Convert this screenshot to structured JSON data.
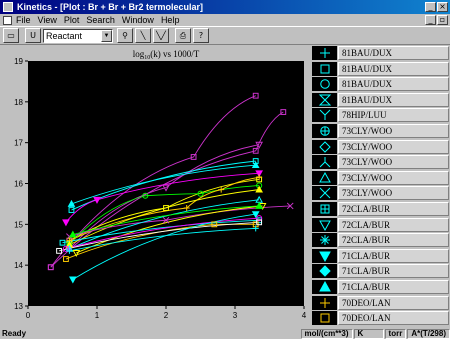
{
  "window": {
    "title": "Kinetics - [Plot : Br + Br + Br2 termolecular]",
    "min": "_",
    "close": "×"
  },
  "menu": [
    "File",
    "View",
    "Plot",
    "Search",
    "Window",
    "Help"
  ],
  "mdi": {
    "min": "_",
    "restore": "▫"
  },
  "toolbar": {
    "save_icon": "▭",
    "bold_u": "U",
    "reactant_value": "Reactant",
    "binoculars": "⚲",
    "line1": "╲",
    "line2": "╲╱",
    "print": "⎙",
    "help": "?"
  },
  "status": {
    "text": "Ready",
    "units": "mol/(cm**3)",
    "temp": "K",
    "pressure": "torr",
    "formula": "A*(T/298)"
  },
  "legend": [
    {
      "symbol": "plus-thin",
      "label": "81BAU/DUX",
      "color": "#00ffff"
    },
    {
      "symbol": "square-open",
      "label": "81BAU/DUX",
      "color": "#00ffff"
    },
    {
      "symbol": "circle-open",
      "label": "81BAU/DUX",
      "color": "#00ffff"
    },
    {
      "symbol": "bowtie",
      "label": "81BAU/DUX",
      "color": "#00ffff"
    },
    {
      "symbol": "y",
      "label": "78HIP/LUU",
      "color": "#00ffff"
    },
    {
      "symbol": "circle-plus",
      "label": "73CLY/WOO",
      "color": "#00ffff"
    },
    {
      "symbol": "diamond-open",
      "label": "73CLY/WOO",
      "color": "#00ffff"
    },
    {
      "symbol": "inv-y",
      "label": "73CLY/WOO",
      "color": "#00ffff"
    },
    {
      "symbol": "triangle-open",
      "label": "73CLY/WOO",
      "color": "#00ffff"
    },
    {
      "symbol": "x",
      "label": "73CLY/WOO",
      "color": "#00ffff"
    },
    {
      "symbol": "square-plus",
      "label": "72CLA/BUR",
      "color": "#00ffff"
    },
    {
      "symbol": "inv-triangle-open",
      "label": "72CLA/BUR",
      "color": "#00ffff"
    },
    {
      "symbol": "asterisk",
      "label": "72CLA/BUR",
      "color": "#00ffff"
    },
    {
      "symbol": "inv-triangle-filled",
      "label": "71CLA/BUR",
      "color": "#00ffff"
    },
    {
      "symbol": "diamond-filled",
      "label": "71CLA/BUR",
      "color": "#00ffff"
    },
    {
      "symbol": "triangle-filled",
      "label": "71CLA/BUR",
      "color": "#00ffff"
    },
    {
      "symbol": "plus-thin",
      "label": "70DEO/LAN",
      "color": "#ffcc00"
    },
    {
      "symbol": "square-open",
      "label": "70DEO/LAN",
      "color": "#ffcc00"
    }
  ],
  "chart_data": {
    "type": "line",
    "title": "log10(k) vs 1000/T",
    "title_parts": {
      "pre": "log",
      "sub": "10",
      "post": "(k) vs 1000/T"
    },
    "xlim": [
      0,
      4
    ],
    "ylim": [
      13,
      19
    ],
    "xticks": [
      "0",
      "1",
      "2",
      "3",
      "4"
    ],
    "yticks": [
      "13",
      "14",
      "15",
      "16",
      "17",
      "18",
      "19"
    ],
    "grid": false,
    "background": "#000000",
    "series": [
      {
        "color": "#cc33cc",
        "marker": "square-open",
        "x": [
          0.33,
          2.4,
          3.3
        ],
        "y": [
          13.95,
          16.65,
          18.15
        ]
      },
      {
        "color": "#cc33cc",
        "marker": "square-open",
        "x": [
          0.33,
          3.3,
          3.7
        ],
        "y": [
          13.95,
          16.8,
          17.75
        ]
      },
      {
        "color": "#cc33cc",
        "marker": "inv-triangle-open",
        "x": [
          0.6,
          2.0,
          3.35
        ],
        "y": [
          14.4,
          15.9,
          16.95
        ]
      },
      {
        "color": "#00ffff",
        "marker": "square-open",
        "x": [
          0.63,
          3.3
        ],
        "y": [
          15.35,
          16.55
        ]
      },
      {
        "color": "#00ffff",
        "marker": "triangle-filled",
        "x": [
          0.63,
          3.3
        ],
        "y": [
          15.5,
          16.45
        ]
      },
      {
        "color": "#ffff00",
        "marker": "square-open",
        "x": [
          0.6,
          2.0,
          3.35
        ],
        "y": [
          14.6,
          15.4,
          16.1
        ]
      },
      {
        "color": "#ff00ff",
        "marker": "inv-triangle-filled",
        "x": [
          0.55,
          1.0,
          3.35
        ],
        "y": [
          15.05,
          15.6,
          16.25
        ]
      },
      {
        "color": "#00ff00",
        "marker": "circle-open",
        "x": [
          0.6,
          1.7,
          2.5,
          3.35
        ],
        "y": [
          14.5,
          15.7,
          15.75,
          15.95
        ]
      },
      {
        "color": "#ffcc00",
        "marker": "plus-thin",
        "x": [
          0.6,
          2.3,
          2.8,
          3.35
        ],
        "y": [
          14.6,
          15.4,
          15.85,
          16.15
        ]
      },
      {
        "color": "#ffff00",
        "marker": "triangle-filled",
        "x": [
          0.6,
          3.35
        ],
        "y": [
          14.5,
          15.85
        ]
      },
      {
        "color": "#cc33cc",
        "marker": "x",
        "x": [
          0.6,
          2.0,
          3.8
        ],
        "y": [
          14.7,
          15.1,
          15.45
        ]
      },
      {
        "color": "#00ffff",
        "marker": "triangle-open",
        "x": [
          0.6,
          3.35
        ],
        "y": [
          14.4,
          15.6
        ]
      },
      {
        "color": "#ffff00",
        "marker": "inv-triangle-open",
        "x": [
          0.7,
          3.4
        ],
        "y": [
          14.3,
          15.45
        ]
      },
      {
        "color": "#00ffff",
        "marker": "square-open",
        "x": [
          0.5,
          3.35
        ],
        "y": [
          14.55,
          15.1
        ]
      },
      {
        "color": "#00ff00",
        "marker": "triangle-filled",
        "x": [
          0.65,
          3.35
        ],
        "y": [
          14.75,
          15.45
        ]
      },
      {
        "color": "#ffcc00",
        "marker": "square-open",
        "x": [
          0.55,
          2.7,
          3.3
        ],
        "y": [
          14.15,
          15.0,
          15.0
        ]
      },
      {
        "color": "#ff00ff",
        "marker": "circle-open",
        "x": [
          0.55,
          3.35
        ],
        "y": [
          14.4,
          15.15
        ]
      },
      {
        "color": "#00ffff",
        "marker": "plus-thin",
        "x": [
          0.6,
          3.3
        ],
        "y": [
          14.35,
          14.9
        ]
      },
      {
        "color": "#ffffff",
        "marker": "square-open",
        "x": [
          0.45,
          3.35
        ],
        "y": [
          14.35,
          15.05
        ]
      },
      {
        "color": "#00ffff",
        "marker": "inv-triangle-filled",
        "x": [
          0.65,
          3.3
        ],
        "y": [
          13.65,
          15.25
        ]
      }
    ]
  }
}
